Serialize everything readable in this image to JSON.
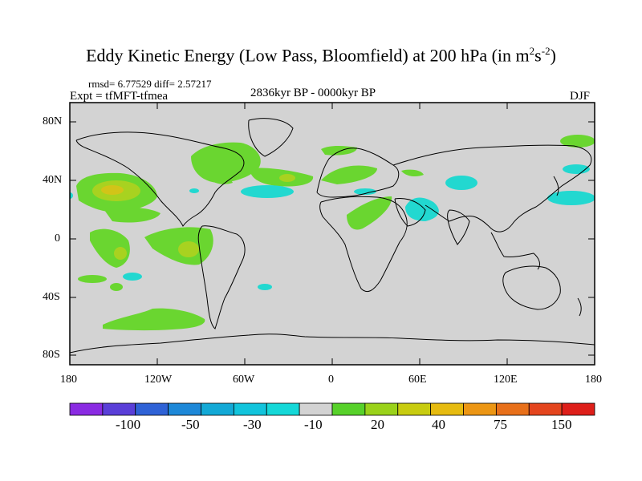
{
  "title": {
    "main": "Eddy Kinetic Energy (Low Pass, Bloomfield) at 200 hPa (in m",
    "sup1": "2",
    "mid": "s",
    "sup2": "-2",
    "end": ")"
  },
  "stats": {
    "rmsd": "rmsd= 6.77529",
    "diff": "diff= 2.57217"
  },
  "subtitle": {
    "left": "Expt = tfMFT-tfmea",
    "center": "2836kyr BP - 0000kyr BP",
    "right": "DJF"
  },
  "axes": {
    "y_ticks": [
      "80N",
      "40N",
      "0",
      "40S",
      "80S"
    ],
    "x_ticks": [
      "180",
      "120W",
      "60W",
      "0",
      "60E",
      "120E",
      "180"
    ]
  },
  "colorbar": {
    "labels": [
      "-100",
      "-50",
      "-30",
      "-10",
      "20",
      "40",
      "75",
      "150"
    ],
    "colors": [
      "#8a2be2",
      "#5a3fd8",
      "#2f62d6",
      "#1e88d8",
      "#13a9d6",
      "#12c4dc",
      "#15d8d8",
      "#d3d3d3",
      "#57d12a",
      "#9ad21a",
      "#c8cc10",
      "#e6bb10",
      "#ec9614",
      "#e8701a",
      "#e4451e",
      "#de1f1a"
    ]
  },
  "colors": {
    "land": "#d3d3d3",
    "green": "#6ad630",
    "yellowgreen": "#a8d220",
    "yellow": "#d2c418",
    "cyan": "#22d8d0"
  },
  "map_extent": {
    "lon_range": [
      -180,
      180
    ],
    "lat_range": [
      -90,
      90
    ]
  }
}
